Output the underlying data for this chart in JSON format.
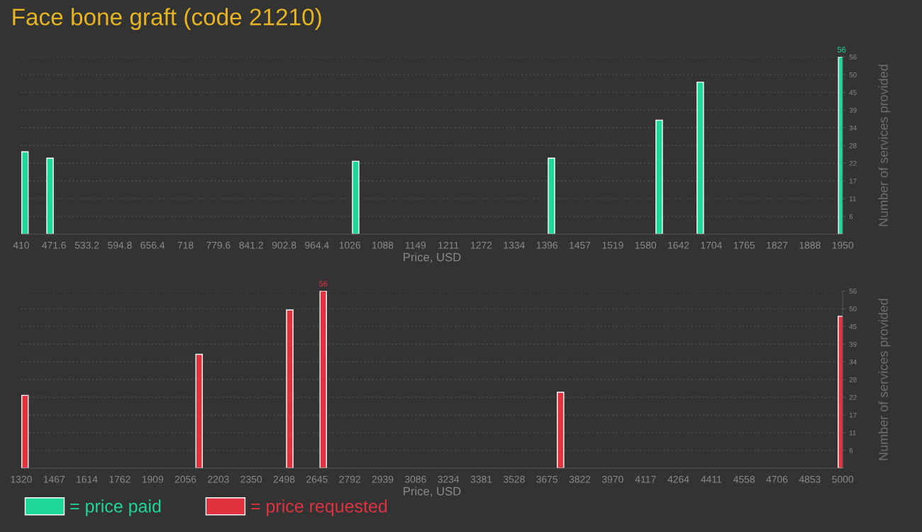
{
  "chart_data": [
    {
      "type": "bar",
      "title": "Face bone graft (code 21210)",
      "xlabel": "Price, USD",
      "ylabel": "Number of services provided",
      "x": [
        417,
        464,
        1037,
        1404,
        1606,
        1683,
        1948
      ],
      "series": [
        {
          "name": "= price paid",
          "color": "#1ed89a",
          "values": [
            26,
            24,
            23,
            24,
            36,
            48,
            56
          ],
          "value_labels": [
            null,
            null,
            null,
            null,
            null,
            null,
            "56"
          ]
        }
      ],
      "xlim": [
        410,
        1950
      ],
      "xticks": [
        410,
        471.6,
        533.2,
        594.8,
        656.4,
        718,
        779.6,
        841.2,
        902.8,
        964.4,
        {
          "value": 1026,
          "label": "1026"
        },
        {
          "value": 1087.6,
          "label": "1088"
        },
        {
          "value": 1149.2,
          "label": "1149"
        },
        {
          "value": 1210.8,
          "label": "1211"
        },
        {
          "value": 1272.4,
          "label": "1272"
        },
        1334,
        {
          "value": 1395.6,
          "label": "1396"
        },
        {
          "value": 1457.2,
          "label": "1457"
        },
        {
          "value": 1518.8,
          "label": "1519"
        },
        {
          "value": 1580.4,
          "label": "1580"
        },
        1642,
        {
          "value": 1703.6,
          "label": "1704"
        },
        {
          "value": 1765.2,
          "label": "1765"
        },
        {
          "value": 1826.8,
          "label": "1827"
        },
        {
          "value": 1888.4,
          "label": "1888"
        },
        1950
      ],
      "ylim": [
        0,
        56
      ],
      "yticks": [
        {
          "value": 5.6,
          "label": "6"
        },
        {
          "value": 11.2,
          "label": "11"
        },
        {
          "value": 16.8,
          "label": "17"
        },
        {
          "value": 22.4,
          "label": "22"
        },
        28,
        {
          "value": 33.6,
          "label": "34"
        },
        {
          "value": 39.2,
          "label": "39"
        },
        {
          "value": 44.8,
          "label": "45"
        },
        {
          "value": 50.4,
          "label": "50"
        },
        56
      ],
      "grid": "y"
    },
    {
      "type": "bar",
      "xlabel": "Price, USD",
      "ylabel": "Number of services provided",
      "x": [
        1337,
        2117,
        2523,
        2673,
        3736,
        4994
      ],
      "series": [
        {
          "name": "= price requested",
          "color": "#e0323f",
          "values": [
            23,
            36,
            50,
            56,
            24,
            48
          ],
          "value_labels": [
            null,
            null,
            null,
            "56",
            null,
            null
          ]
        }
      ],
      "xlim": [
        1320,
        5000
      ],
      "xticks": [
        1320,
        {
          "value": 1467.2,
          "label": "1467"
        },
        {
          "value": 1614.4,
          "label": "1614"
        },
        {
          "value": 1761.6,
          "label": "1762"
        },
        {
          "value": 1908.8,
          "label": "1909"
        },
        2056,
        {
          "value": 2203.2,
          "label": "2203"
        },
        {
          "value": 2350.4,
          "label": "2350"
        },
        {
          "value": 2497.6,
          "label": "2498"
        },
        {
          "value": 2644.8,
          "label": "2645"
        },
        2792,
        {
          "value": 2939.2,
          "label": "2939"
        },
        {
          "value": 3086.4,
          "label": "3086"
        },
        {
          "value": 3233.6,
          "label": "3234"
        },
        {
          "value": 3380.8,
          "label": "3381"
        },
        3528,
        {
          "value": 3675.2,
          "label": "3675"
        },
        {
          "value": 3822.4,
          "label": "3822"
        },
        {
          "value": 3969.6,
          "label": "3970"
        },
        {
          "value": 4116.8,
          "label": "4117"
        },
        4264,
        {
          "value": 4411.2,
          "label": "4411"
        },
        {
          "value": 4558.4,
          "label": "4558"
        },
        {
          "value": 4705.6,
          "label": "4706"
        },
        {
          "value": 4852.8,
          "label": "4853"
        },
        5000
      ],
      "ylim": [
        0,
        56
      ],
      "yticks": [
        {
          "value": 5.6,
          "label": "6"
        },
        {
          "value": 11.2,
          "label": "11"
        },
        {
          "value": 16.8,
          "label": "17"
        },
        {
          "value": 22.4,
          "label": "22"
        },
        28,
        {
          "value": 33.6,
          "label": "34"
        },
        {
          "value": 39.2,
          "label": "39"
        },
        {
          "value": 44.8,
          "label": "45"
        },
        {
          "value": 50.4,
          "label": "50"
        },
        56
      ],
      "grid": "y",
      "legend": "bottom left"
    }
  ]
}
